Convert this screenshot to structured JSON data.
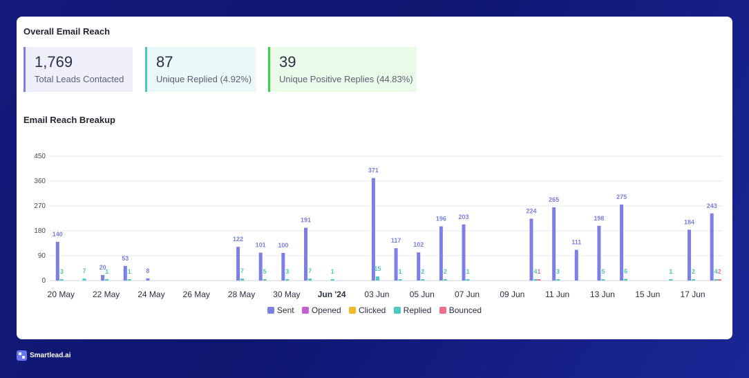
{
  "overview": {
    "title": "Overall Email Reach",
    "stats": [
      {
        "value": "1,769",
        "label": "Total Leads Contacted"
      },
      {
        "value": "87",
        "label": "Unique Replied (4.92%)"
      },
      {
        "value": "39",
        "label": "Unique Positive Replies (44.83%)"
      }
    ]
  },
  "breakup": {
    "title": "Email Reach Breakup"
  },
  "footer": {
    "brand": "Smartlead.ai"
  },
  "colors": {
    "sent": "#7b7fe6",
    "opened": "#c65fcf",
    "clicked": "#f1b828",
    "replied": "#4cc7c4",
    "bounced": "#ef6f87"
  },
  "chart_data": {
    "type": "bar",
    "ylim": [
      0,
      450
    ],
    "yticks": [
      0,
      90,
      180,
      270,
      360,
      450
    ],
    "x_range": [
      -0.5,
      29.3
    ],
    "x_ticks": [
      {
        "label": "20 May",
        "x": 0
      },
      {
        "label": "22 May",
        "x": 2
      },
      {
        "label": "24 May",
        "x": 4
      },
      {
        "label": "26 May",
        "x": 6
      },
      {
        "label": "28 May",
        "x": 8
      },
      {
        "label": "30 May",
        "x": 10
      },
      {
        "label": "Jun '24",
        "x": 12,
        "bold": true
      },
      {
        "label": "03 Jun",
        "x": 14
      },
      {
        "label": "05 Jun",
        "x": 16
      },
      {
        "label": "07 Jun",
        "x": 18
      },
      {
        "label": "09 Jun",
        "x": 20
      },
      {
        "label": "11 Jun",
        "x": 22
      },
      {
        "label": "13 Jun",
        "x": 24
      },
      {
        "label": "15 Jun",
        "x": 26
      },
      {
        "label": "17 Jun",
        "x": 28
      }
    ],
    "legend": [
      "Sent",
      "Opened",
      "Clicked",
      "Replied",
      "Bounced"
    ],
    "series": [
      {
        "name": "Sent",
        "color_key": "sent",
        "points": [
          {
            "x": 0,
            "y": 140
          },
          {
            "x": 2,
            "y": 20
          },
          {
            "x": 3,
            "y": 53
          },
          {
            "x": 4,
            "y": 8
          },
          {
            "x": 8,
            "y": 122
          },
          {
            "x": 9,
            "y": 101
          },
          {
            "x": 10,
            "y": 100
          },
          {
            "x": 11,
            "y": 191
          },
          {
            "x": 14,
            "y": 371
          },
          {
            "x": 15,
            "y": 117
          },
          {
            "x": 16,
            "y": 102
          },
          {
            "x": 17,
            "y": 196
          },
          {
            "x": 18,
            "y": 203
          },
          {
            "x": 21,
            "y": 224
          },
          {
            "x": 22,
            "y": 265
          },
          {
            "x": 23,
            "y": 111
          },
          {
            "x": 24,
            "y": 198
          },
          {
            "x": 25,
            "y": 275
          },
          {
            "x": 28,
            "y": 184
          },
          {
            "x": 29,
            "y": 243
          }
        ]
      },
      {
        "name": "Replied",
        "color_key": "replied",
        "points": [
          {
            "x": 0,
            "y": 3
          },
          {
            "x": 1,
            "y": 7
          },
          {
            "x": 2,
            "y": 1
          },
          {
            "x": 3,
            "y": 1
          },
          {
            "x": 8,
            "y": 7
          },
          {
            "x": 9,
            "y": 5
          },
          {
            "x": 10,
            "y": 3
          },
          {
            "x": 11,
            "y": 7
          },
          {
            "x": 12,
            "y": 1
          },
          {
            "x": 14,
            "y": 15
          },
          {
            "x": 15,
            "y": 1
          },
          {
            "x": 16,
            "y": 2
          },
          {
            "x": 17,
            "y": 2
          },
          {
            "x": 18,
            "y": 1
          },
          {
            "x": 21,
            "y": 4
          },
          {
            "x": 22,
            "y": 3
          },
          {
            "x": 24,
            "y": 5
          },
          {
            "x": 25,
            "y": 6
          },
          {
            "x": 27,
            "y": 1
          },
          {
            "x": 28,
            "y": 2
          },
          {
            "x": 29,
            "y": 4
          }
        ]
      },
      {
        "name": "Bounced",
        "color_key": "bounced",
        "points": [
          {
            "x": 21,
            "y": 1
          },
          {
            "x": 29,
            "y": 2
          }
        ]
      }
    ]
  }
}
